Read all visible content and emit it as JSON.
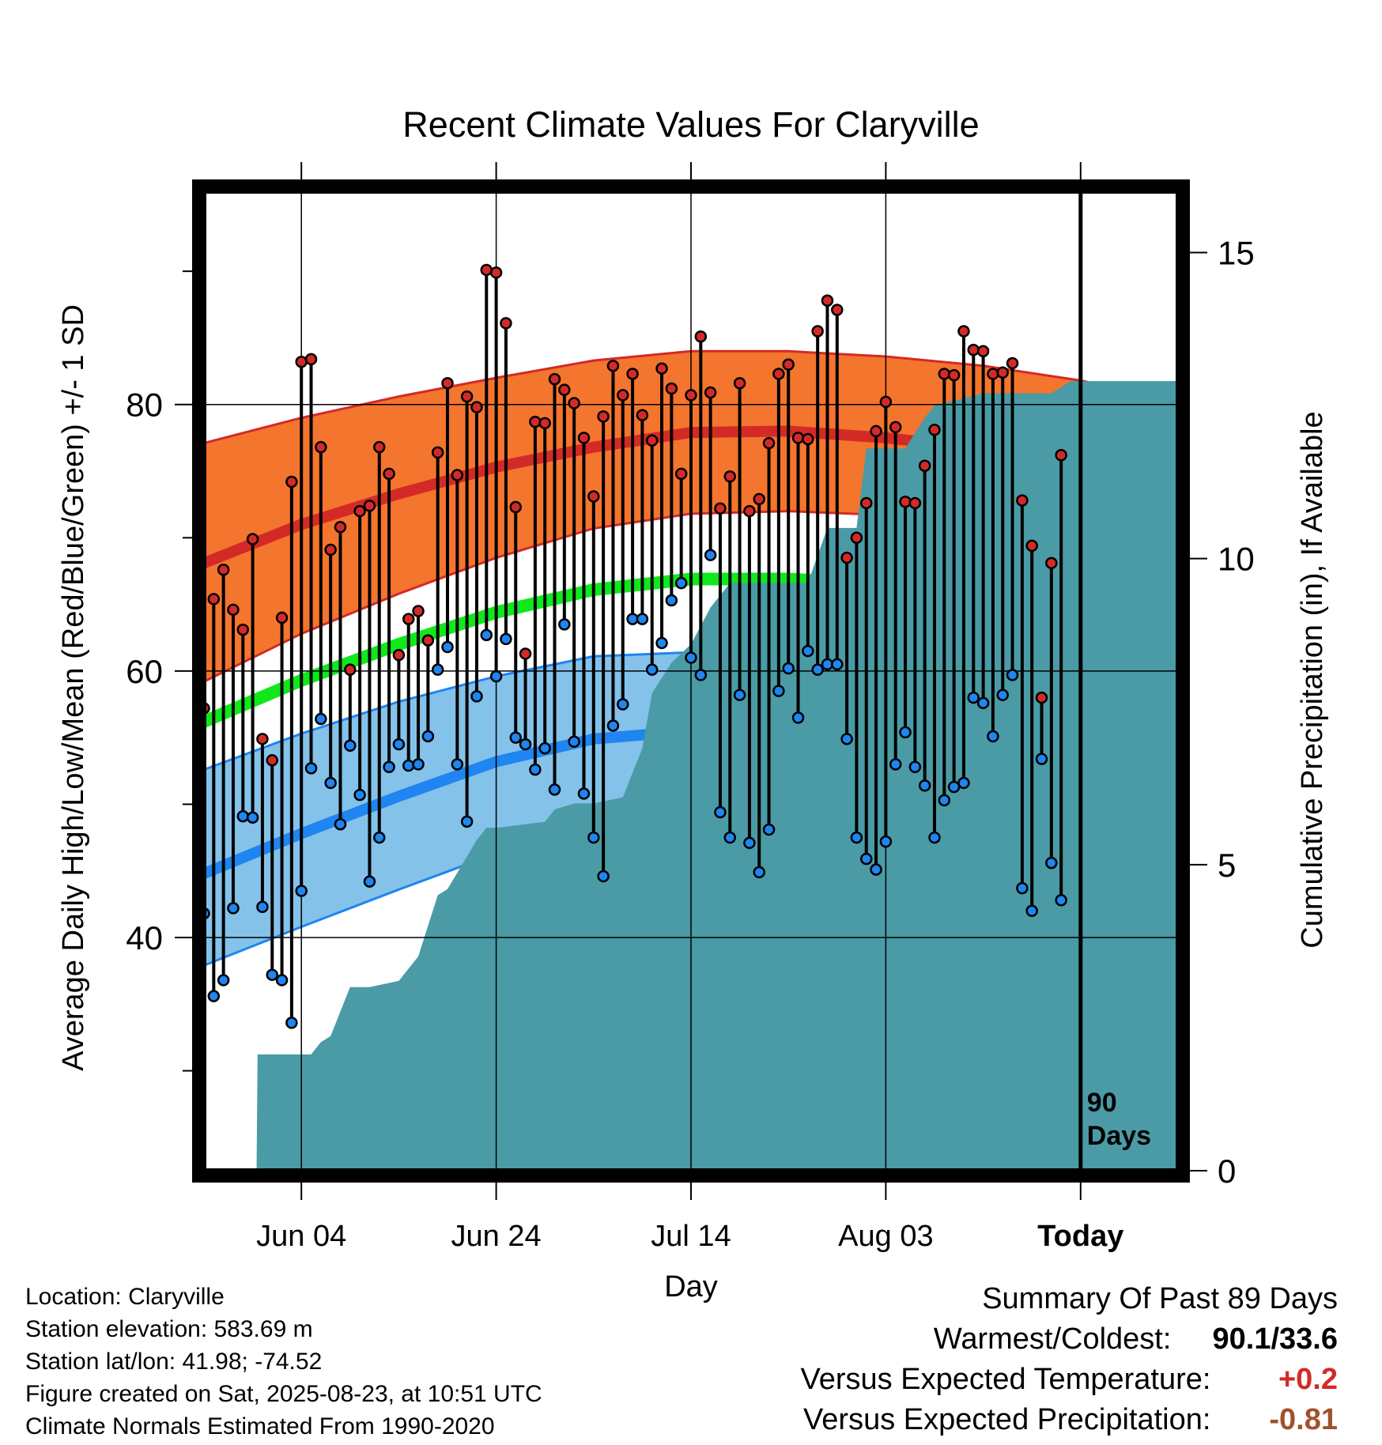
{
  "chart_data": {
    "type": "line",
    "title": "Recent Climate Values For Claryville",
    "xlabel": "Day",
    "ylabel": "Average Daily High/Low/Mean (Red/Blue/Green) +/- 1 SD",
    "y2label": "Cumulative Precipitation (in), If Available",
    "x_ticks": [
      "Jun 04",
      "Jun 24",
      "Jul 14",
      "Aug 03",
      "Today"
    ],
    "x_tick_day_index": [
      10,
      30,
      50,
      70,
      90
    ],
    "day_range": [
      0,
      100
    ],
    "ylim": [
      22.5,
      96
    ],
    "y_ticks": [
      40,
      60,
      80
    ],
    "y2lim": [
      0,
      16
    ],
    "y2_ticks": [
      0,
      5,
      10,
      15
    ],
    "today_marker": {
      "day_index": 90,
      "label_line1": "90",
      "label_line2": "Days"
    },
    "grid": true,
    "normals": {
      "day_index": [
        0,
        10,
        20,
        30,
        40,
        50,
        60,
        70,
        80,
        90,
        100
      ],
      "high_mean": [
        68.1,
        71.0,
        73.3,
        75.3,
        76.8,
        77.9,
        78.0,
        77.5,
        76.7,
        75.5,
        73.7
      ],
      "high_sd_upper": [
        77.1,
        79.0,
        80.6,
        82.0,
        83.3,
        84.0,
        84.0,
        83.6,
        82.9,
        81.8,
        80.2
      ],
      "high_sd_lower": [
        59.2,
        62.8,
        65.8,
        68.5,
        70.7,
        71.8,
        72.0,
        71.7,
        71.0,
        69.8,
        67.8
      ],
      "mean": [
        56.2,
        59.3,
        62.0,
        64.4,
        66.1,
        66.9,
        66.9,
        66.5,
        65.8,
        64.8,
        62.8
      ],
      "low_mean": [
        44.8,
        47.8,
        50.6,
        53.2,
        54.9,
        55.5,
        55.5,
        55.3,
        54.7,
        53.8,
        51.7
      ],
      "low_sd_upper": [
        52.6,
        55.3,
        57.7,
        59.6,
        61.1,
        61.4,
        61.2,
        60.7,
        60.0,
        59.2,
        58.3
      ],
      "low_sd_lower": [
        37.9,
        40.8,
        43.6,
        46.3,
        48.3,
        49.7,
        49.8,
        49.5,
        48.8,
        47.6,
        45.6
      ]
    },
    "series": [
      {
        "name": "High",
        "values": [
          57.2,
          65.4,
          67.6,
          64.6,
          63.1,
          69.9,
          54.9,
          53.3,
          64.0,
          74.2,
          83.2,
          83.4,
          76.8,
          69.1,
          70.8,
          60.1,
          72.0,
          72.4,
          76.8,
          74.8,
          61.2,
          63.9,
          64.5,
          62.3,
          76.4,
          81.6,
          74.7,
          80.6,
          79.8,
          90.1,
          89.9,
          86.1,
          72.3,
          61.3,
          78.7,
          78.6,
          81.9,
          81.1,
          80.1,
          77.5,
          73.1,
          79.1,
          82.9,
          80.7,
          82.3,
          79.2,
          77.3,
          82.7,
          81.2,
          74.8,
          80.7,
          85.1,
          80.9,
          72.2,
          74.6,
          81.6,
          72.0,
          72.9,
          77.1,
          82.3,
          83.0,
          77.5,
          77.4,
          85.5,
          87.8,
          87.1,
          68.5,
          70.0,
          72.6,
          78.0,
          80.2,
          78.3,
          72.7,
          72.6,
          75.4,
          78.1,
          82.3,
          82.2,
          85.5,
          84.1,
          84.0,
          82.3,
          82.4,
          83.1,
          72.8,
          69.4,
          58.0,
          68.1,
          76.2
        ]
      },
      {
        "name": "Low",
        "values": [
          41.8,
          35.6,
          36.8,
          42.2,
          49.1,
          49.0,
          42.3,
          37.2,
          36.8,
          33.6,
          43.5,
          52.7,
          56.4,
          51.6,
          48.5,
          54.4,
          50.7,
          44.2,
          47.5,
          52.8,
          54.5,
          52.9,
          53.0,
          55.1,
          60.1,
          61.8,
          53.0,
          48.7,
          58.1,
          62.7,
          59.6,
          62.4,
          55.0,
          54.5,
          52.6,
          54.2,
          51.1,
          63.5,
          54.7,
          50.8,
          47.5,
          44.6,
          55.9,
          57.5,
          63.9,
          63.9,
          60.1,
          62.1,
          65.3,
          66.6,
          61.0,
          59.7,
          68.7,
          49.4,
          47.5,
          58.2,
          47.1,
          44.9,
          48.1,
          58.5,
          60.2,
          56.5,
          61.5,
          60.1,
          60.5,
          60.5,
          54.9,
          47.5,
          45.9,
          45.1,
          47.2,
          53.0,
          55.4,
          52.8,
          51.4,
          47.5,
          50.3,
          51.3,
          51.6,
          58.0,
          57.6,
          55.1,
          58.2,
          59.7,
          43.7,
          42.0,
          53.4,
          45.6,
          42.8
        ]
      },
      {
        "name": "Cumulative Precipitation",
        "day_index": [
          0,
          5.4,
          5.5,
          11,
          12,
          13,
          15,
          17,
          20,
          22,
          24,
          25,
          28,
          29,
          30,
          35,
          36,
          38,
          40,
          43,
          45,
          46,
          48,
          50,
          52,
          54,
          58,
          62,
          64,
          67,
          68,
          69,
          72,
          74,
          75,
          80,
          82,
          87,
          89,
          90,
          100
        ],
        "values": [
          0,
          0,
          1.9,
          1.9,
          2.1,
          2.2,
          3.0,
          3.0,
          3.1,
          3.5,
          4.5,
          4.6,
          5.4,
          5.6,
          5.6,
          5.7,
          5.9,
          6.0,
          6.0,
          6.1,
          6.9,
          7.8,
          8.3,
          8.6,
          9.2,
          9.6,
          9.6,
          9.6,
          10.5,
          10.5,
          11.8,
          11.8,
          11.8,
          12.3,
          12.5,
          12.7,
          12.7,
          12.7,
          12.9,
          12.9,
          12.9
        ]
      }
    ],
    "colors": {
      "high": "#d42a27",
      "high_band": "#f4752e",
      "mean": "#10e81b",
      "low": "#1f85f0",
      "low_band": "#84c2ea",
      "precip": "#4a9ba5",
      "frame": "#000000"
    }
  },
  "footer": {
    "location": "Location: Claryville",
    "elevation": "Station elevation: 583.69 m",
    "latlon": "Station lat/lon: 41.98; -74.52",
    "created": "Figure created on Sat, 2025-08-23, at 10:51 UTC",
    "normals": "Climate Normals Estimated From 1990-2020"
  },
  "summary": {
    "title": "Summary Of Past 89 Days",
    "warmest_label": "Warmest/Coldest:",
    "warmest_value": "90.1/33.6",
    "temp_label": "Versus Expected Temperature:",
    "temp_value": "+0.2",
    "temp_color": "#d42a27",
    "precip_label": "Versus Expected Precipitation:",
    "precip_value": "-0.81",
    "precip_color": "#a0522d"
  }
}
